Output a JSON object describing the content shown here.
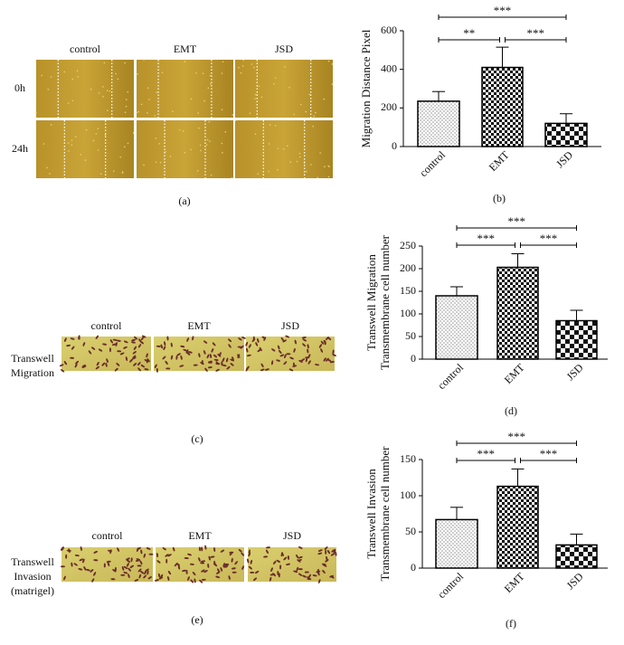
{
  "chart_data": [
    {
      "type": "bar",
      "caption": "(b)",
      "ylabel": [
        "Migration Distance Pixel"
      ],
      "categories": [
        "control",
        "EMT",
        "JSD"
      ],
      "values": [
        235,
        410,
        120
      ],
      "errors": [
        50,
        105,
        50
      ],
      "ylim": [
        0,
        600
      ],
      "yticks": [
        0,
        200,
        400,
        600
      ],
      "patterns": [
        "dots",
        "checker-small",
        "checker-large"
      ],
      "annotations": [
        "***",
        "**",
        "***"
      ]
    },
    {
      "type": "bar",
      "caption": "(d)",
      "ylabel": [
        "Transwell Migration",
        "Transmembrane cell number"
      ],
      "categories": [
        "control",
        "EMT",
        "JSD"
      ],
      "values": [
        140,
        203,
        85
      ],
      "errors": [
        20,
        30,
        23
      ],
      "ylim": [
        0,
        250
      ],
      "yticks": [
        0,
        50,
        100,
        150,
        200,
        250
      ],
      "patterns": [
        "dots",
        "checker-small",
        "checker-large"
      ],
      "annotations": [
        "***",
        "***",
        "***"
      ]
    },
    {
      "type": "bar",
      "caption": "(f)",
      "ylabel": [
        "Transwell Invasion",
        "Transmembrane cell number"
      ],
      "categories": [
        "control",
        "EMT",
        "JSD"
      ],
      "values": [
        67,
        113,
        32
      ],
      "errors": [
        17,
        24,
        15
      ],
      "ylim": [
        0,
        150
      ],
      "yticks": [
        0,
        50,
        100,
        150
      ],
      "patterns": [
        "dots",
        "checker-small",
        "checker-large"
      ],
      "annotations": [
        "***",
        "***",
        "***"
      ]
    }
  ],
  "panels": [
    {
      "caption": "(a)",
      "columns": [
        "control",
        "EMT",
        "JSD"
      ],
      "rows": [
        [
          "0h"
        ],
        [
          "24h"
        ]
      ]
    },
    {
      "caption": "(c)",
      "columns": [
        "control",
        "EMT",
        "JSD"
      ],
      "rows": [
        [
          "Transwell",
          "Migration"
        ]
      ]
    },
    {
      "caption": "(e)",
      "columns": [
        "control",
        "EMT",
        "JSD"
      ],
      "rows": [
        [
          "Transwell",
          "Invasion",
          "(matrigel)"
        ]
      ]
    }
  ]
}
